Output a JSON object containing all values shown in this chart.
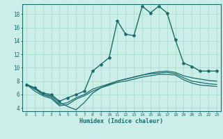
{
  "xlabel": "Humidex (Indice chaleur)",
  "bg_color": "#cceee8",
  "line_color": "#1a6b6b",
  "grid_color": "#aaddcc",
  "xlim": [
    -0.5,
    23.5
  ],
  "ylim": [
    3.5,
    19.5
  ],
  "xticks": [
    0,
    1,
    2,
    3,
    4,
    5,
    6,
    7,
    8,
    9,
    10,
    11,
    12,
    13,
    14,
    15,
    16,
    17,
    18,
    19,
    20,
    21,
    22,
    23
  ],
  "yticks": [
    4,
    6,
    8,
    10,
    12,
    14,
    16,
    18
  ],
  "series1": [
    7.5,
    7.0,
    6.2,
    6.0,
    5.0,
    5.5,
    6.0,
    6.5,
    9.5,
    10.5,
    11.5,
    17.0,
    15.0,
    14.8,
    19.2,
    18.2,
    19.2,
    18.2,
    14.2,
    10.7,
    10.2,
    9.5,
    9.5,
    9.5
  ],
  "series2": [
    7.5,
    7.0,
    6.0,
    5.8,
    4.8,
    4.2,
    3.7,
    4.8,
    6.2,
    7.0,
    7.5,
    8.0,
    8.3,
    8.6,
    8.9,
    9.2,
    9.4,
    9.5,
    9.3,
    8.8,
    8.5,
    8.3,
    8.1,
    8.0
  ],
  "series3": [
    7.5,
    6.8,
    6.0,
    5.6,
    4.5,
    4.8,
    5.5,
    6.0,
    6.8,
    7.2,
    7.6,
    8.0,
    8.3,
    8.6,
    8.9,
    9.1,
    9.2,
    9.3,
    9.1,
    8.5,
    8.0,
    7.8,
    7.6,
    7.5
  ],
  "series4": [
    7.5,
    6.5,
    5.8,
    5.4,
    4.3,
    4.5,
    5.3,
    5.8,
    6.5,
    7.0,
    7.4,
    7.8,
    8.0,
    8.3,
    8.6,
    8.8,
    9.0,
    9.0,
    8.9,
    8.2,
    7.7,
    7.4,
    7.3,
    7.2
  ]
}
